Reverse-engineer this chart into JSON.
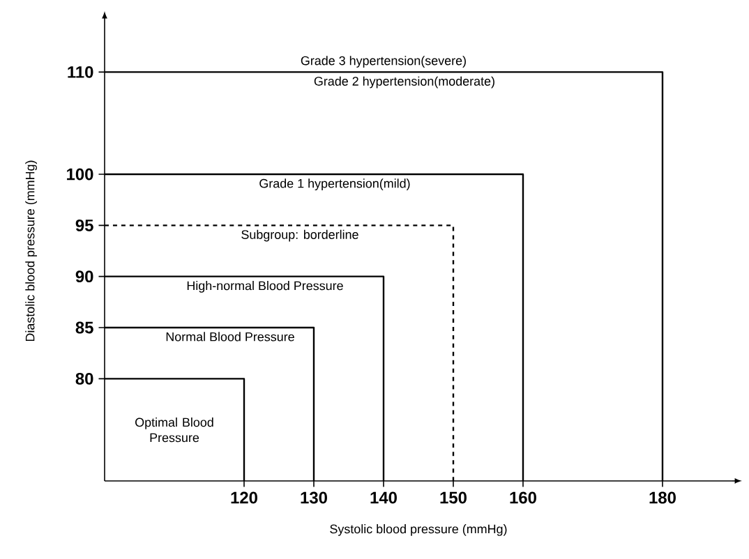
{
  "chart_data": {
    "type": "line",
    "xlabel": "Systolic blood pressure (mmHg)",
    "ylabel": "Diastolic blood pressure (mmHg)",
    "xlim": [
      100,
      190
    ],
    "ylim": [
      70,
      115
    ],
    "xticks": [
      {
        "value": 120,
        "label": "120"
      },
      {
        "value": 130,
        "label": "130"
      },
      {
        "value": 140,
        "label": "140"
      },
      {
        "value": 150,
        "label": "150"
      },
      {
        "value": 160,
        "label": "160"
      },
      {
        "value": 180,
        "label": "180"
      }
    ],
    "yticks": [
      {
        "value": 80,
        "label": "80"
      },
      {
        "value": 85,
        "label": "85"
      },
      {
        "value": 90,
        "label": "90"
      },
      {
        "value": 95,
        "label": "95"
      },
      {
        "value": 100,
        "label": "100"
      },
      {
        "value": 110,
        "label": "110"
      }
    ],
    "marker": "none",
    "series": [
      {
        "name": "Optimal Blood Pressure",
        "x": [
          100,
          120,
          120
        ],
        "values": [
          80,
          80,
          70
        ],
        "color": "#000000",
        "line_style": "solid"
      },
      {
        "name": "Normal Blood Pressure",
        "x": [
          100,
          130,
          130
        ],
        "values": [
          85,
          85,
          70
        ],
        "color": "#000000",
        "line_style": "solid"
      },
      {
        "name": "High-normal Blood Pressure",
        "x": [
          100,
          140,
          140
        ],
        "values": [
          90,
          90,
          70
        ],
        "color": "#000000",
        "line_style": "solid"
      },
      {
        "name": "Subgroup: borderline",
        "x": [
          100,
          150,
          150
        ],
        "values": [
          95,
          95,
          70
        ],
        "color": "#000000",
        "line_style": "dashed"
      },
      {
        "name": "Grade 1 hypertension(mild)",
        "x": [
          100,
          160,
          160
        ],
        "values": [
          100,
          100,
          70
        ],
        "color": "#000000",
        "line_style": "solid"
      },
      {
        "name": "Grade 2 hypertension(moderate)",
        "x": [
          100,
          180,
          180
        ],
        "values": [
          110,
          110,
          70
        ],
        "color": "#000000",
        "line_style": "solid"
      }
    ],
    "annotations": [
      "Grade 3 hypertension(severe)"
    ]
  }
}
